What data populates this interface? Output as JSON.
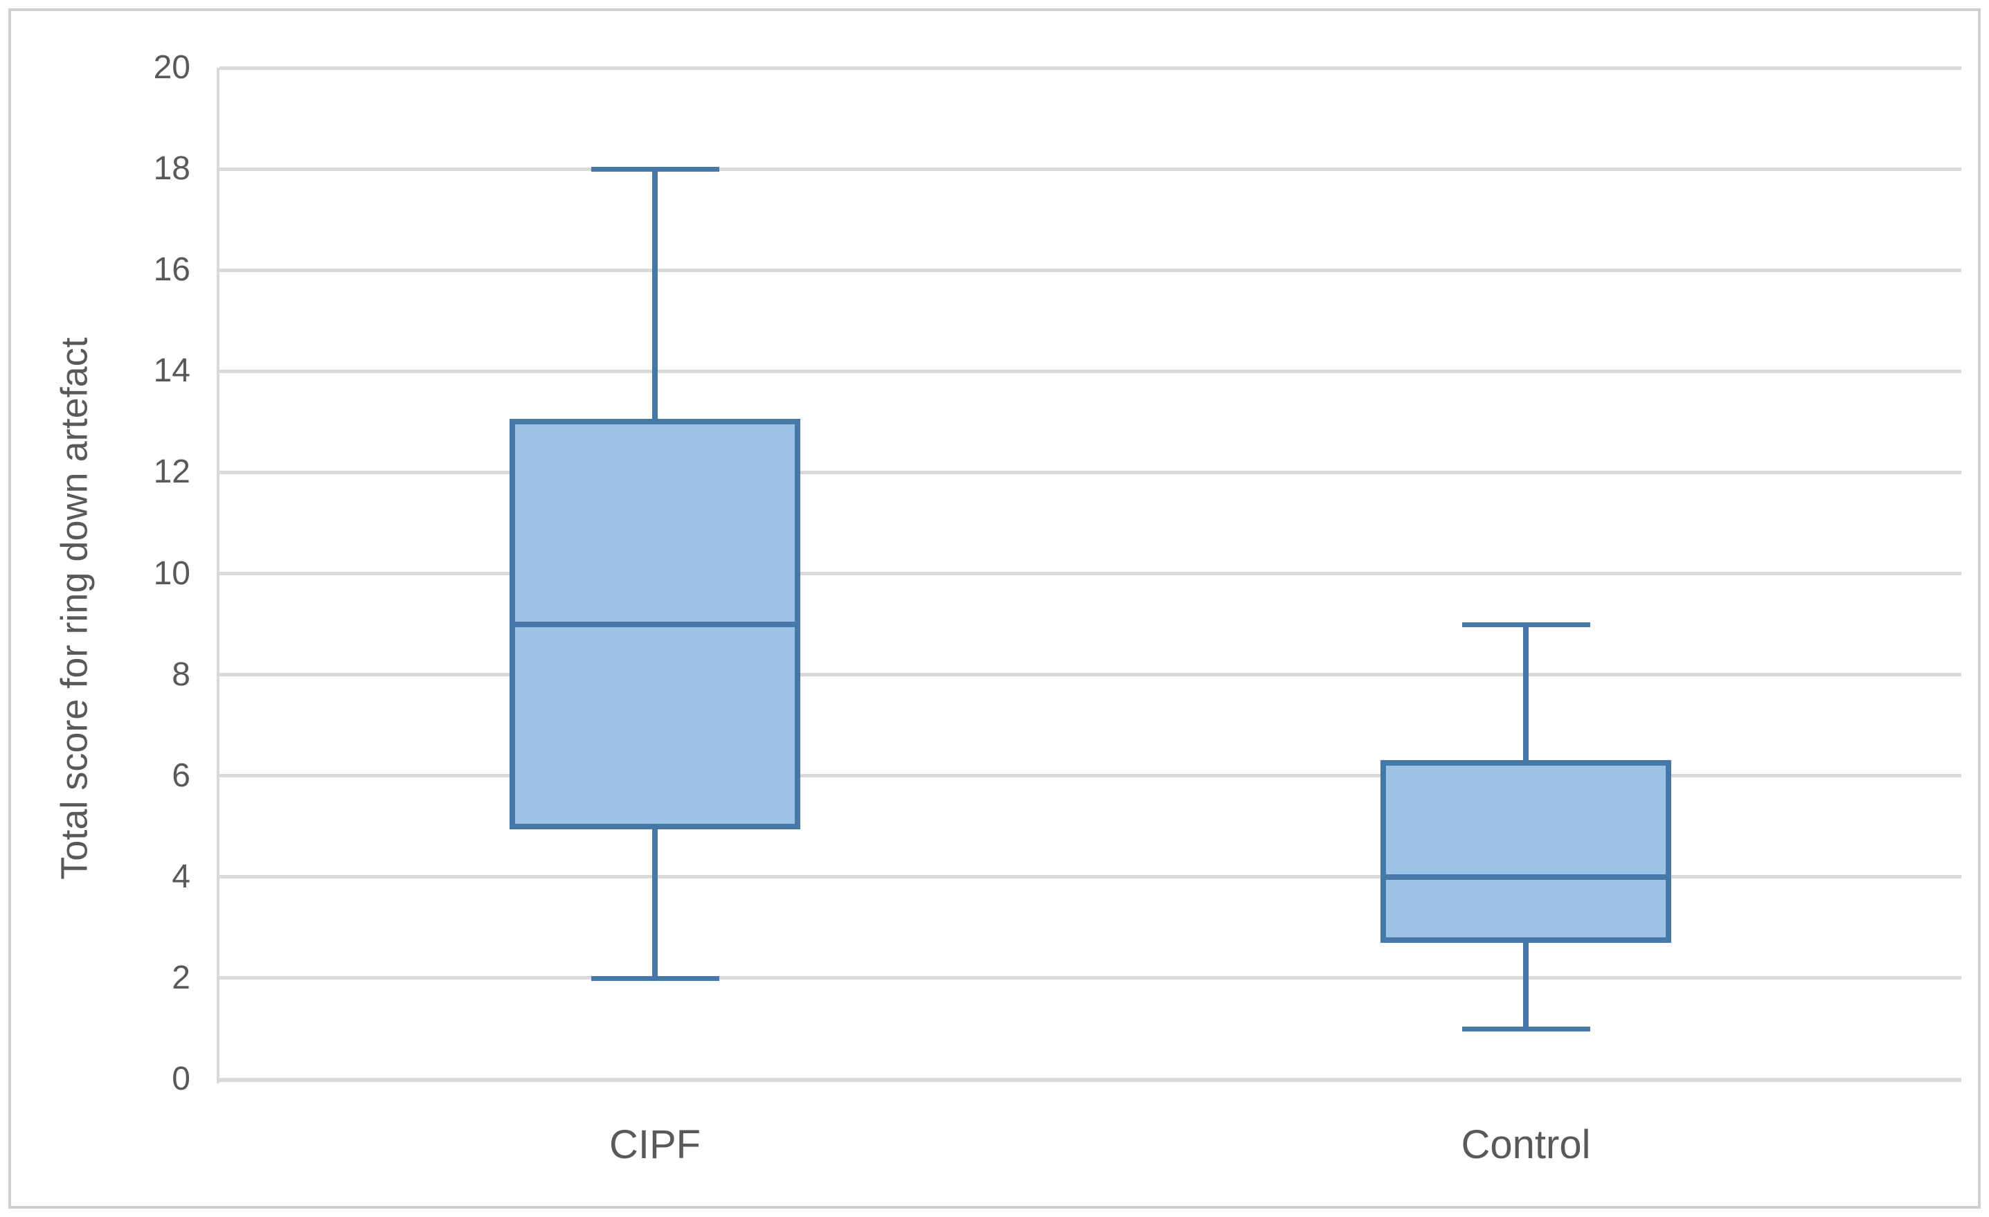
{
  "chart_data": {
    "type": "boxplot",
    "title": "",
    "ylabel": "Total score for ring down artefact",
    "xlabel": "",
    "categories": [
      "CIPF",
      "Control"
    ],
    "series": [
      {
        "name": "CIPF",
        "min": 2,
        "q1": 5,
        "median": 9,
        "q3": 13,
        "max": 18
      },
      {
        "name": "Control",
        "min": 1,
        "q1": 2.75,
        "median": 4,
        "q3": 6.25,
        "max": 9
      }
    ],
    "ylim": [
      0,
      20
    ],
    "ytick_step": 2,
    "yticks": [
      "0",
      "2",
      "4",
      "6",
      "8",
      "10",
      "12",
      "14",
      "16",
      "18",
      "20"
    ],
    "grid": "horizontal-major",
    "legend": "none",
    "colors": {
      "box_fill": "#9CC3E5",
      "box_border": "#4678A8",
      "whisker": "#4678A8",
      "gridline": "#D9D9D9",
      "axis_text": "#595959",
      "frame_border": "#CFCFCF",
      "background": "#FFFFFF"
    }
  }
}
